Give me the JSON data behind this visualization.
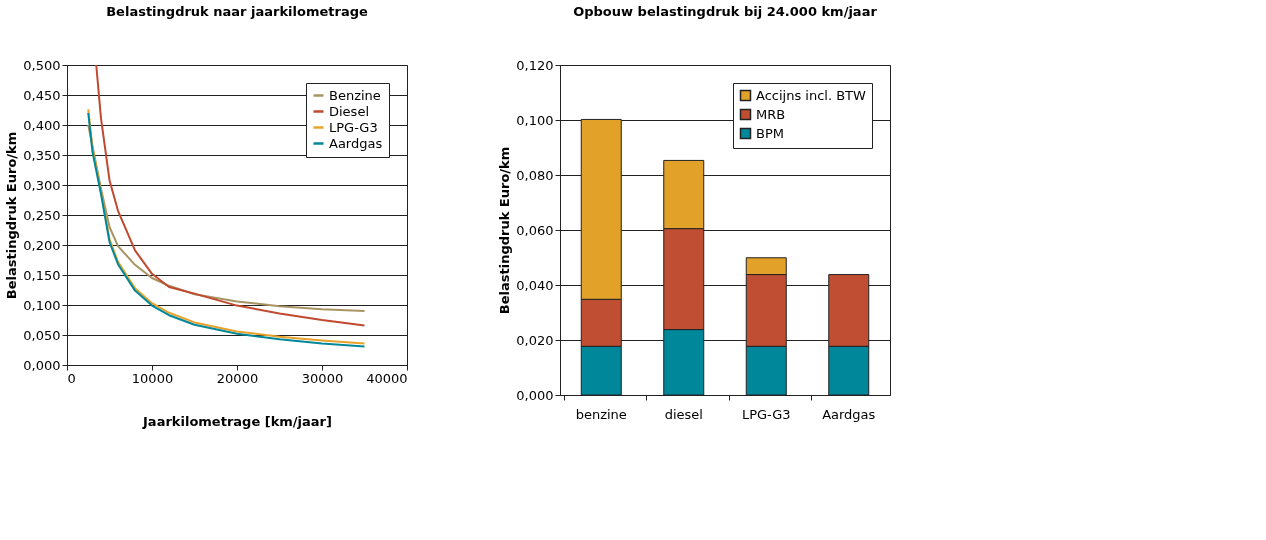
{
  "chart_data": [
    {
      "type": "line",
      "title": "Belastingdruk naar jaarkilometrage",
      "xlabel": "Jaarkilometrage [km/jaar]",
      "ylabel": "Belastingdruk Euro/km",
      "xlim": [
        0,
        40000
      ],
      "xticks": [
        0,
        10000,
        20000,
        30000,
        40000
      ],
      "ylim": [
        0,
        0.5
      ],
      "yticks": [
        {
          "value": 0,
          "label": "0,000"
        },
        {
          "value": 0.05,
          "label": "0,050"
        },
        {
          "value": 0.1,
          "label": "0,100"
        },
        {
          "value": 0.15,
          "label": "0,150"
        },
        {
          "value": 0.2,
          "label": "0,200"
        },
        {
          "value": 0.25,
          "label": "0,250"
        },
        {
          "value": 0.3,
          "label": "0,300"
        },
        {
          "value": 0.35,
          "label": "0,350"
        },
        {
          "value": 0.4,
          "label": "0,400"
        },
        {
          "value": 0.45,
          "label": "0,450"
        },
        {
          "value": 0.5,
          "label": "0,500"
        }
      ],
      "grid": "y",
      "legend": "top right",
      "marker": "none",
      "line_style": "solid",
      "series": [
        {
          "name": "Benzine",
          "color": "#a89462",
          "x": [
            2500,
            4000,
            5000,
            6000,
            8000,
            10000,
            12000,
            15000,
            20000,
            25000,
            30000,
            35000
          ],
          "values": [
            0.4,
            0.294,
            0.23,
            0.198,
            0.167,
            0.145,
            0.132,
            0.118,
            0.106,
            0.098,
            0.093,
            0.09
          ]
        },
        {
          "name": "Diesel",
          "color": "#c0492f",
          "x": [
            3440,
            4000,
            5000,
            6000,
            8000,
            10000,
            12000,
            15000,
            20000,
            25000,
            30000,
            35000
          ],
          "values": [
            0.5,
            0.411,
            0.308,
            0.257,
            0.191,
            0.152,
            0.13,
            0.119,
            0.099,
            0.086,
            0.075,
            0.066
          ]
        },
        {
          "name": "LPG-G3",
          "color": "#e8a22a",
          "x": [
            2500,
            3000,
            4000,
            5000,
            6000,
            8000,
            10000,
            12000,
            15000,
            20000,
            25000,
            30000,
            35000
          ],
          "values": [
            0.426,
            0.362,
            0.289,
            0.21,
            0.172,
            0.128,
            0.103,
            0.087,
            0.071,
            0.056,
            0.047,
            0.041,
            0.036
          ]
        },
        {
          "name": "Aardgas",
          "color": "#00879a",
          "x": [
            2500,
            3000,
            4000,
            5000,
            6000,
            8000,
            10000,
            12000,
            15000,
            20000,
            25000,
            30000,
            35000
          ],
          "values": [
            0.42,
            0.355,
            0.285,
            0.205,
            0.168,
            0.124,
            0.099,
            0.083,
            0.067,
            0.052,
            0.043,
            0.036,
            0.031
          ]
        }
      ]
    },
    {
      "type": "bar",
      "title": "Opbouw belastingdruk bij 24.000 km/jaar",
      "ylabel": "Belastingdruk Euro/km",
      "stacked": true,
      "categories": [
        "benzine",
        "diesel",
        "LPG-G3",
        "Aardgas"
      ],
      "ylim": [
        0,
        0.12
      ],
      "yticks": [
        {
          "value": 0,
          "label": "0,000"
        },
        {
          "value": 0.02,
          "label": "0,020"
        },
        {
          "value": 0.04,
          "label": "0,040"
        },
        {
          "value": 0.06,
          "label": "0,060"
        },
        {
          "value": 0.08,
          "label": "0,080"
        },
        {
          "value": 0.1,
          "label": "0,100"
        },
        {
          "value": 0.12,
          "label": "0,120"
        }
      ],
      "grid": "y",
      "legend": "top right",
      "series": [
        {
          "name": "BPM",
          "color": "#00879a",
          "values": [
            0.0177,
            0.0238,
            0.0177,
            0.0177
          ]
        },
        {
          "name": "MRB",
          "color": "#c04e32",
          "values": [
            0.0171,
            0.0367,
            0.0261,
            0.0261
          ]
        },
        {
          "name": "Accijns incl. BTW",
          "color": "#e2a128",
          "values": [
            0.0654,
            0.0248,
            0.0061,
            null
          ]
        }
      ]
    }
  ]
}
